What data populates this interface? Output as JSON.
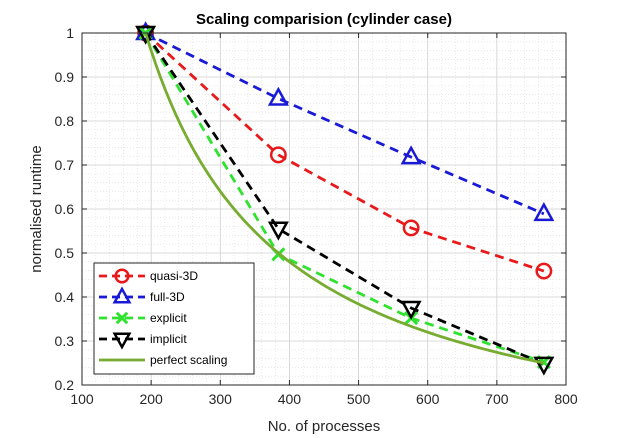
{
  "chart_data": {
    "type": "line",
    "title": "Scaling comparision (cylinder case)",
    "xlabel": "No. of processes",
    "ylabel": "normalised runtime",
    "xlim": [
      100,
      800
    ],
    "ylim": [
      0.2,
      1
    ],
    "xticks": [
      "100",
      "200",
      "300",
      "400",
      "500",
      "600",
      "700",
      "800"
    ],
    "yticks": [
      "0.2",
      "0.3",
      "0.4",
      "0.5",
      "0.6",
      "0.7",
      "0.8",
      "0.9",
      "1"
    ],
    "grid": true,
    "minor_grid": true,
    "legend_position": "bottom-left",
    "series": [
      {
        "name": "quasi-3D",
        "color": "#e8191b",
        "marker": "circle",
        "linestyle": "dashed",
        "x": [
          192,
          384,
          576,
          768
        ],
        "y": [
          1.0,
          0.723,
          0.557,
          0.459
        ]
      },
      {
        "name": "full-3D",
        "color": "#1a1ad6",
        "marker": "triangle-up",
        "linestyle": "dashed",
        "x": [
          192,
          384,
          576,
          768
        ],
        "y": [
          1.0,
          0.851,
          0.718,
          0.589
        ]
      },
      {
        "name": "explicit",
        "color": "#2ee22e",
        "marker": "x",
        "linestyle": "dashed",
        "x": [
          192,
          384,
          576,
          768
        ],
        "y": [
          1.0,
          0.497,
          0.352,
          0.252
        ]
      },
      {
        "name": "implicit",
        "color": "#000000",
        "marker": "triangle-down",
        "linestyle": "dashed",
        "x": [
          192,
          384,
          576,
          768
        ],
        "y": [
          1.0,
          0.555,
          0.375,
          0.248
        ]
      },
      {
        "name": "perfect scaling",
        "color": "#77ac30",
        "marker": "none",
        "linestyle": "solid",
        "function": "192/x",
        "x": [
          192,
          768
        ],
        "y": [
          1.0,
          0.25
        ]
      }
    ]
  }
}
